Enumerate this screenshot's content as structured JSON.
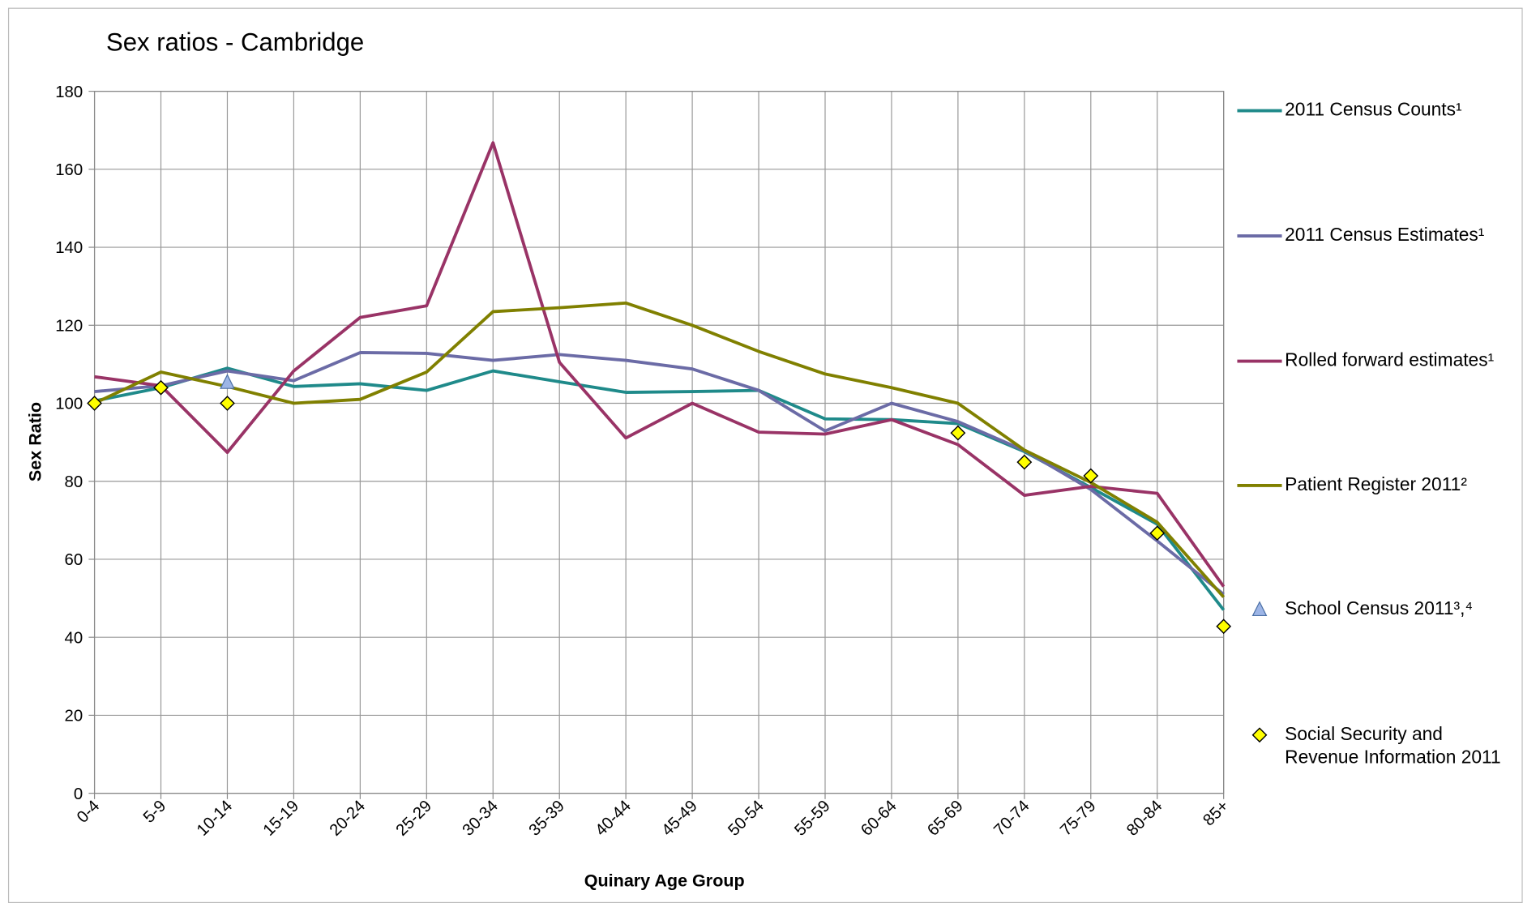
{
  "chart_data": {
    "type": "line",
    "title": "Sex ratios - Cambridge",
    "x_label": "Quinary Age Group",
    "y_label": "Sex Ratio",
    "categories": [
      "0-4",
      "5-9",
      "10-14",
      "15-19",
      "20-24",
      "25-29",
      "30-34",
      "35-39",
      "40-44",
      "45-49",
      "50-54",
      "55-59",
      "60-64",
      "65-69",
      "70-74",
      "75-79",
      "80-84",
      "85+"
    ],
    "ylim": [
      0,
      180
    ],
    "yticks": [
      0,
      20,
      40,
      60,
      80,
      100,
      120,
      140,
      160,
      180
    ],
    "grid": true,
    "legend": "right",
    "series": [
      {
        "name": "2011 Census Counts¹",
        "color": "#1f8a8a",
        "values": [
          100.6,
          104,
          109,
          104.3,
          105,
          103.3,
          108.3,
          105.5,
          102.8,
          103,
          103.3,
          96,
          95.8,
          94.8,
          87.6,
          78.4,
          69,
          47
        ]
      },
      {
        "name": "2011 Census Estimates¹",
        "color": "#6b6ba6",
        "values": [
          103,
          104.5,
          108.3,
          105.8,
          113,
          112.8,
          111,
          112.5,
          111,
          108.8,
          103.3,
          92.9,
          100,
          95.3,
          87.9,
          77.9,
          64.7,
          51
        ]
      },
      {
        "name": "Rolled forward estimates¹",
        "color": "#993366",
        "values": [
          106.8,
          104.5,
          87.4,
          108.3,
          122,
          125,
          166.8,
          110.5,
          91.1,
          100,
          92.6,
          92.1,
          95.8,
          89.4,
          76.4,
          78.7,
          76.9,
          53
        ]
      },
      {
        "name": "Patient Register 2011²",
        "color": "#808000",
        "values": [
          100,
          108,
          104.3,
          100,
          101,
          108,
          123.5,
          124.5,
          125.7,
          120,
          113.3,
          107.5,
          104,
          100,
          88,
          79.7,
          69.5,
          50.3
        ]
      },
      {
        "name": "School Census 2011³,⁴",
        "color": "#9db5e6",
        "marker": "triangle",
        "values": [
          null,
          null,
          105.3,
          null,
          null,
          null,
          null,
          null,
          null,
          null,
          null,
          null,
          null,
          null,
          null,
          null,
          null,
          null
        ]
      },
      {
        "name": "Social Security and Revenue Information 2011",
        "color": "#ffff00",
        "marker": "diamond",
        "values": [
          100,
          104,
          100,
          null,
          null,
          null,
          null,
          null,
          null,
          null,
          null,
          null,
          null,
          92.4,
          84.9,
          81.4,
          66.7,
          42.8
        ]
      }
    ]
  }
}
